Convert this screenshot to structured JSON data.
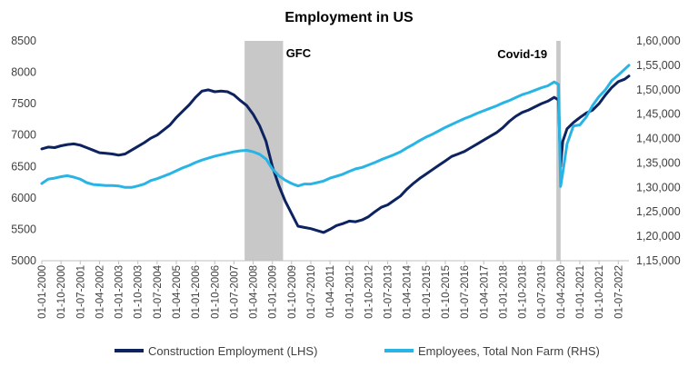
{
  "chart_data": {
    "type": "line",
    "title": "Employment in US",
    "x_start": "2000-01",
    "x_end": "2022-12",
    "x_tick_labels": [
      "01-01-2000",
      "01-10-2000",
      "01-07-2001",
      "01-04-2002",
      "01-01-2003",
      "01-10-2003",
      "01-07-2004",
      "01-04-2005",
      "01-01-2006",
      "01-10-2006",
      "01-07-2007",
      "01-04-2008",
      "01-01-2009",
      "01-10-2009",
      "01-07-2010",
      "01-04-2011",
      "01-01-2012",
      "01-10-2012",
      "01-07-2013",
      "01-04-2014",
      "01-01-2015",
      "01-10-2015",
      "01-07-2016",
      "01-04-2017",
      "01-01-2018",
      "01-10-2018",
      "01-07-2019",
      "01-04-2020",
      "01-01-2021",
      "01-10-2021",
      "01-07-2022"
    ],
    "y_left": {
      "label": "",
      "ylim": [
        5000,
        8500
      ],
      "ticks": [
        5000,
        5500,
        6000,
        6500,
        7000,
        7500,
        8000,
        8500
      ]
    },
    "y_right": {
      "label": "",
      "ylim": [
        115000,
        160000
      ],
      "ticks": [
        "1,15,000",
        "1,20,000",
        "1,25,000",
        "1,30,000",
        "1,35,000",
        "1,40,000",
        "1,45,000",
        "1,50,000",
        "1,55,000",
        "1,60,000"
      ]
    },
    "shaded_regions": [
      {
        "label": "GFC",
        "start": "2007-12",
        "end": "2009-06"
      },
      {
        "label": "Covid-19",
        "start": "2020-02",
        "end": "2020-04"
      }
    ],
    "series": [
      {
        "name": "Construction Employment (LHS)",
        "axis": "left",
        "color": "#0d2360",
        "points": [
          [
            "2000-01",
            6780
          ],
          [
            "2000-04",
            6810
          ],
          [
            "2000-07",
            6800
          ],
          [
            "2000-10",
            6830
          ],
          [
            "2001-01",
            6850
          ],
          [
            "2001-04",
            6860
          ],
          [
            "2001-07",
            6840
          ],
          [
            "2001-10",
            6800
          ],
          [
            "2002-01",
            6760
          ],
          [
            "2002-04",
            6720
          ],
          [
            "2002-07",
            6710
          ],
          [
            "2002-10",
            6700
          ],
          [
            "2003-01",
            6680
          ],
          [
            "2003-04",
            6700
          ],
          [
            "2003-07",
            6760
          ],
          [
            "2003-10",
            6820
          ],
          [
            "2004-01",
            6880
          ],
          [
            "2004-04",
            6950
          ],
          [
            "2004-07",
            7000
          ],
          [
            "2004-10",
            7080
          ],
          [
            "2005-01",
            7160
          ],
          [
            "2005-04",
            7280
          ],
          [
            "2005-07",
            7380
          ],
          [
            "2005-10",
            7480
          ],
          [
            "2006-01",
            7600
          ],
          [
            "2006-04",
            7700
          ],
          [
            "2006-07",
            7720
          ],
          [
            "2006-10",
            7690
          ],
          [
            "2007-01",
            7700
          ],
          [
            "2007-04",
            7690
          ],
          [
            "2007-07",
            7640
          ],
          [
            "2007-10",
            7550
          ],
          [
            "2008-01",
            7470
          ],
          [
            "2008-04",
            7330
          ],
          [
            "2008-07",
            7150
          ],
          [
            "2008-10",
            6900
          ],
          [
            "2009-01",
            6500
          ],
          [
            "2009-04",
            6200
          ],
          [
            "2009-07",
            5950
          ],
          [
            "2009-10",
            5750
          ],
          [
            "2010-01",
            5550
          ],
          [
            "2010-04",
            5530
          ],
          [
            "2010-07",
            5510
          ],
          [
            "2010-10",
            5480
          ],
          [
            "2011-01",
            5450
          ],
          [
            "2011-04",
            5500
          ],
          [
            "2011-07",
            5560
          ],
          [
            "2011-10",
            5590
          ],
          [
            "2012-01",
            5630
          ],
          [
            "2012-04",
            5620
          ],
          [
            "2012-07",
            5650
          ],
          [
            "2012-10",
            5700
          ],
          [
            "2013-01",
            5780
          ],
          [
            "2013-04",
            5850
          ],
          [
            "2013-07",
            5890
          ],
          [
            "2013-10",
            5960
          ],
          [
            "2014-01",
            6030
          ],
          [
            "2014-04",
            6140
          ],
          [
            "2014-07",
            6230
          ],
          [
            "2014-10",
            6310
          ],
          [
            "2015-01",
            6380
          ],
          [
            "2015-04",
            6450
          ],
          [
            "2015-07",
            6520
          ],
          [
            "2015-10",
            6590
          ],
          [
            "2016-01",
            6660
          ],
          [
            "2016-04",
            6700
          ],
          [
            "2016-07",
            6740
          ],
          [
            "2016-10",
            6800
          ],
          [
            "2017-01",
            6860
          ],
          [
            "2017-04",
            6920
          ],
          [
            "2017-07",
            6980
          ],
          [
            "2017-10",
            7040
          ],
          [
            "2018-01",
            7120
          ],
          [
            "2018-04",
            7220
          ],
          [
            "2018-07",
            7300
          ],
          [
            "2018-10",
            7360
          ],
          [
            "2019-01",
            7400
          ],
          [
            "2019-04",
            7450
          ],
          [
            "2019-07",
            7500
          ],
          [
            "2019-10",
            7540
          ],
          [
            "2020-01",
            7600
          ],
          [
            "2020-03",
            7560
          ],
          [
            "2020-04",
            6500
          ],
          [
            "2020-05",
            6900
          ],
          [
            "2020-07",
            7100
          ],
          [
            "2020-10",
            7200
          ],
          [
            "2021-01",
            7280
          ],
          [
            "2021-04",
            7350
          ],
          [
            "2021-07",
            7400
          ],
          [
            "2021-10",
            7500
          ],
          [
            "2022-01",
            7640
          ],
          [
            "2022-04",
            7760
          ],
          [
            "2022-07",
            7850
          ],
          [
            "2022-10",
            7890
          ],
          [
            "2022-12",
            7940
          ]
        ]
      },
      {
        "name": "Employees, Total Non Farm (RHS)",
        "axis": "right",
        "color": "#29b4e6",
        "points": [
          [
            "2000-01",
            130800
          ],
          [
            "2000-04",
            131700
          ],
          [
            "2000-07",
            131900
          ],
          [
            "2000-10",
            132200
          ],
          [
            "2001-01",
            132400
          ],
          [
            "2001-04",
            132100
          ],
          [
            "2001-07",
            131700
          ],
          [
            "2001-10",
            131000
          ],
          [
            "2002-01",
            130600
          ],
          [
            "2002-04",
            130500
          ],
          [
            "2002-07",
            130400
          ],
          [
            "2002-10",
            130400
          ],
          [
            "2003-01",
            130300
          ],
          [
            "2003-04",
            130000
          ],
          [
            "2003-07",
            130000
          ],
          [
            "2003-10",
            130300
          ],
          [
            "2004-01",
            130700
          ],
          [
            "2004-04",
            131400
          ],
          [
            "2004-07",
            131800
          ],
          [
            "2004-10",
            132300
          ],
          [
            "2005-01",
            132800
          ],
          [
            "2005-04",
            133400
          ],
          [
            "2005-07",
            134000
          ],
          [
            "2005-10",
            134500
          ],
          [
            "2006-01",
            135100
          ],
          [
            "2006-04",
            135600
          ],
          [
            "2006-07",
            136000
          ],
          [
            "2006-10",
            136400
          ],
          [
            "2007-01",
            136700
          ],
          [
            "2007-04",
            137000
          ],
          [
            "2007-07",
            137300
          ],
          [
            "2007-10",
            137500
          ],
          [
            "2008-01",
            137600
          ],
          [
            "2008-04",
            137300
          ],
          [
            "2008-07",
            136800
          ],
          [
            "2008-10",
            135800
          ],
          [
            "2009-01",
            133800
          ],
          [
            "2009-04",
            132400
          ],
          [
            "2009-07",
            131500
          ],
          [
            "2009-10",
            130800
          ],
          [
            "2010-01",
            130300
          ],
          [
            "2010-04",
            130700
          ],
          [
            "2010-07",
            130700
          ],
          [
            "2010-10",
            131000
          ],
          [
            "2011-01",
            131300
          ],
          [
            "2011-04",
            131900
          ],
          [
            "2011-07",
            132300
          ],
          [
            "2011-10",
            132700
          ],
          [
            "2012-01",
            133300
          ],
          [
            "2012-04",
            133800
          ],
          [
            "2012-07",
            134100
          ],
          [
            "2012-10",
            134600
          ],
          [
            "2013-01",
            135100
          ],
          [
            "2013-04",
            135700
          ],
          [
            "2013-07",
            136200
          ],
          [
            "2013-10",
            136700
          ],
          [
            "2014-01",
            137300
          ],
          [
            "2014-04",
            138100
          ],
          [
            "2014-07",
            138800
          ],
          [
            "2014-10",
            139600
          ],
          [
            "2015-01",
            140300
          ],
          [
            "2015-04",
            140900
          ],
          [
            "2015-07",
            141600
          ],
          [
            "2015-10",
            142300
          ],
          [
            "2016-01",
            142900
          ],
          [
            "2016-04",
            143500
          ],
          [
            "2016-07",
            144100
          ],
          [
            "2016-10",
            144600
          ],
          [
            "2017-01",
            145200
          ],
          [
            "2017-04",
            145700
          ],
          [
            "2017-07",
            146200
          ],
          [
            "2017-10",
            146700
          ],
          [
            "2018-01",
            147300
          ],
          [
            "2018-04",
            147800
          ],
          [
            "2018-07",
            148400
          ],
          [
            "2018-10",
            149000
          ],
          [
            "2019-01",
            149400
          ],
          [
            "2019-04",
            149900
          ],
          [
            "2019-07",
            150400
          ],
          [
            "2019-10",
            150800
          ],
          [
            "2020-01",
            151600
          ],
          [
            "2020-03",
            151100
          ],
          [
            "2020-04",
            130200
          ],
          [
            "2020-05",
            133000
          ],
          [
            "2020-07",
            138900
          ],
          [
            "2020-10",
            142600
          ],
          [
            "2021-01",
            142800
          ],
          [
            "2021-04",
            144400
          ],
          [
            "2021-07",
            146800
          ],
          [
            "2021-10",
            148600
          ],
          [
            "2022-01",
            150000
          ],
          [
            "2022-04",
            151900
          ],
          [
            "2022-07",
            153000
          ],
          [
            "2022-10",
            154200
          ],
          [
            "2022-12",
            155000
          ]
        ]
      }
    ],
    "legend": {
      "position": "bottom"
    }
  },
  "colors": {
    "construction": "#0d2360",
    "nonfarm": "#29b4e6",
    "shade": "#c8c8c8",
    "axis_text": "#404040"
  }
}
